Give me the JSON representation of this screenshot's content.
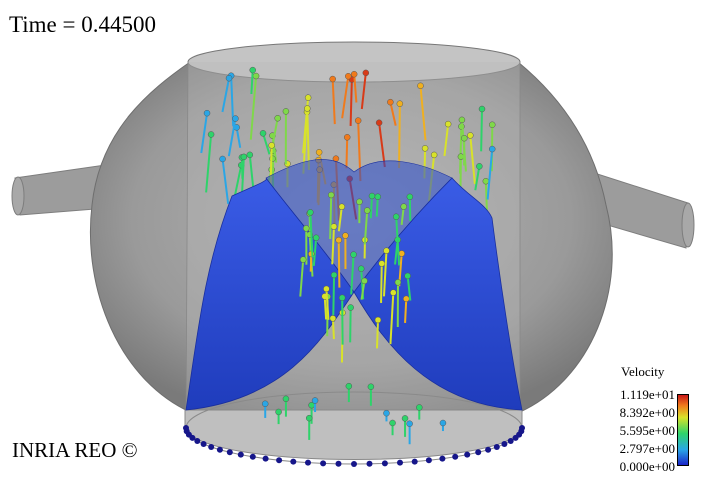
{
  "overlay": {
    "time_label": "Time = 0.44500",
    "watermark": "INRIA REO ©"
  },
  "legend": {
    "title": "Velocity",
    "ticks": [
      "1.119e+01",
      "8.392e+00",
      "5.595e+00",
      "2.797e+00",
      "0.000e+00"
    ],
    "colors": [
      "#1a24c8",
      "#2aa6e6",
      "#2ed36a",
      "#d8e22a",
      "#f07a1c",
      "#c81818"
    ]
  },
  "scene": {
    "vessel_color": "#9a9a9a",
    "valve_leaflet_color": "#2a4fd6",
    "ring_marker_color": "#16168a"
  }
}
